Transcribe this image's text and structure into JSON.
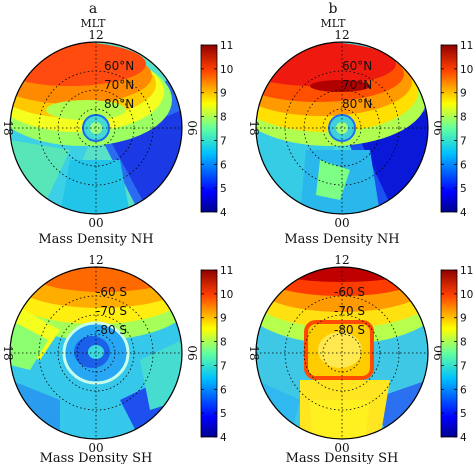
{
  "figure": {
    "panel_letters": [
      "a",
      "b"
    ],
    "top_label": "MLT"
  },
  "colormap": [
    "#00008f",
    "#0000ff",
    "#0060ff",
    "#00c0ff",
    "#20ffdf",
    "#80ff80",
    "#dfff20",
    "#ffc000",
    "#ff6000",
    "#ff0000",
    "#8f0000"
  ],
  "chart_data": [
    {
      "type": "heatmap",
      "projection": "polar",
      "panel": "a",
      "title": "Mass Density NH",
      "mlt_labels": {
        "top": "12",
        "bottom": "00",
        "left": "18",
        "right": "06"
      },
      "latitude_labels": [
        "60°N",
        "70°N",
        "80°N"
      ],
      "colorbar": {
        "min": 4,
        "max": 11,
        "ticks": [
          "4",
          "5",
          "6",
          "7",
          "8",
          "9",
          "10",
          "11"
        ]
      },
      "regions": [
        {
          "where": "noon sector, 50-70 lat",
          "value": 9.6
        },
        {
          "where": "noon sector, 70-80 lat",
          "value": 8.8
        },
        {
          "where": "dusk sector",
          "value": 7.4
        },
        {
          "where": "dawn sector",
          "value": 5.2
        },
        {
          "where": "pole",
          "value": 6.5
        },
        {
          "where": "midnight sector",
          "value": 6.8
        }
      ]
    },
    {
      "type": "heatmap",
      "projection": "polar",
      "panel": "b",
      "title": "Mass Density NH",
      "mlt_labels": {
        "top": "12",
        "bottom": "00",
        "left": "18",
        "right": "06"
      },
      "latitude_labels": [
        "60°N",
        "70°N",
        "80°N"
      ],
      "colorbar": {
        "min": 4,
        "max": 11,
        "ticks": [
          "4",
          "5",
          "6",
          "7",
          "8",
          "9",
          "10",
          "11"
        ]
      },
      "regions": [
        {
          "where": "noon sector, 50-70 lat",
          "value": 10.4
        },
        {
          "where": "noon sector, 70-80 lat",
          "value": 9.5
        },
        {
          "where": "dusk sector",
          "value": 7.8
        },
        {
          "where": "dawn sector",
          "value": 4.6
        },
        {
          "where": "pole",
          "value": 6.8
        },
        {
          "where": "midnight sector",
          "value": 7.0
        }
      ]
    },
    {
      "type": "heatmap",
      "projection": "polar",
      "panel": "a",
      "title": "Mass Density SH",
      "mlt_labels": {
        "top": "12",
        "bottom": "00",
        "left": "18",
        "right": "06"
      },
      "latitude_labels": [
        "-60 S",
        "-70 S",
        "-80 S"
      ],
      "colorbar": {
        "min": 4,
        "max": 11,
        "ticks": [
          "4",
          "5",
          "6",
          "7",
          "8",
          "9",
          "10",
          "11"
        ]
      },
      "regions": [
        {
          "where": "noon sector, 50-70 lat",
          "value": 8.6
        },
        {
          "where": "dusk sector",
          "value": 7.2
        },
        {
          "where": "dawn sector",
          "value": 6.6
        },
        {
          "where": "pole",
          "value": 5.5
        },
        {
          "where": "midnight sector",
          "value": 7.0
        }
      ]
    },
    {
      "type": "heatmap",
      "projection": "polar",
      "panel": "b",
      "title": "Mass Density SH",
      "mlt_labels": {
        "top": "12",
        "bottom": "00",
        "left": "18",
        "right": "06"
      },
      "latitude_labels": [
        "-60 S",
        "-70 S",
        "-80 S"
      ],
      "colorbar": {
        "min": 4,
        "max": 11,
        "ticks": [
          "4",
          "5",
          "6",
          "7",
          "8",
          "9",
          "10",
          "11"
        ]
      },
      "regions": [
        {
          "where": "noon sector, 50-70 lat",
          "value": 10.3
        },
        {
          "where": "dusk sector",
          "value": 7.6
        },
        {
          "where": "dawn sector",
          "value": 7.0
        },
        {
          "where": "pole",
          "value": 9.3
        },
        {
          "where": "midnight sector",
          "value": 8.0
        }
      ]
    }
  ]
}
